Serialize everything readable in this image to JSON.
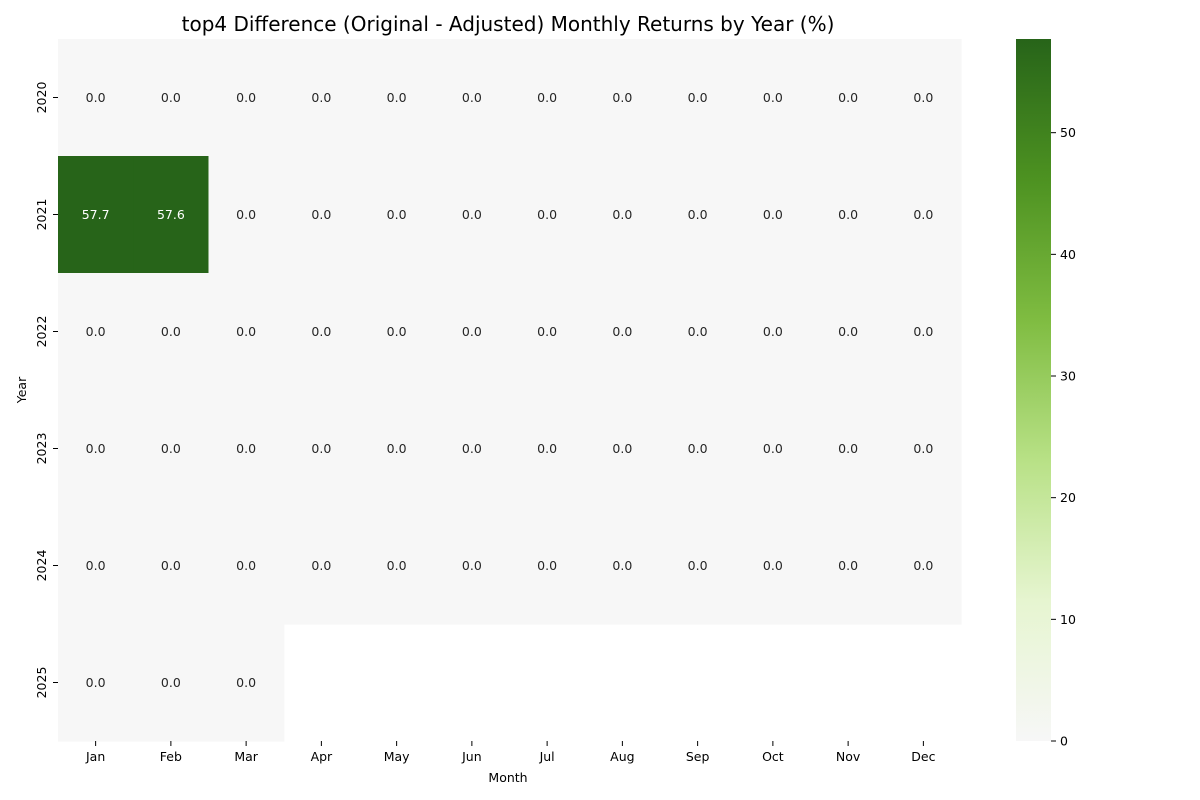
{
  "chart_data": {
    "type": "heatmap",
    "title": "top4 Difference (Original - Adjusted) Monthly Returns by Year (%)",
    "xlabel": "Month",
    "ylabel": "Year",
    "x_categories": [
      "Jan",
      "Feb",
      "Mar",
      "Apr",
      "May",
      "Jun",
      "Jul",
      "Aug",
      "Sep",
      "Oct",
      "Nov",
      "Dec"
    ],
    "y_categories": [
      "2020",
      "2021",
      "2022",
      "2023",
      "2024",
      "2025"
    ],
    "values": [
      [
        0.0,
        0.0,
        0.0,
        0.0,
        0.0,
        0.0,
        0.0,
        0.0,
        0.0,
        0.0,
        0.0,
        0.0
      ],
      [
        57.7,
        57.6,
        0.0,
        0.0,
        0.0,
        0.0,
        0.0,
        0.0,
        0.0,
        0.0,
        0.0,
        0.0
      ],
      [
        0.0,
        0.0,
        0.0,
        0.0,
        0.0,
        0.0,
        0.0,
        0.0,
        0.0,
        0.0,
        0.0,
        0.0
      ],
      [
        0.0,
        0.0,
        0.0,
        0.0,
        0.0,
        0.0,
        0.0,
        0.0,
        0.0,
        0.0,
        0.0,
        0.0
      ],
      [
        0.0,
        0.0,
        0.0,
        0.0,
        0.0,
        0.0,
        0.0,
        0.0,
        0.0,
        0.0,
        0.0,
        0.0
      ],
      [
        0.0,
        0.0,
        0.0,
        null,
        null,
        null,
        null,
        null,
        null,
        null,
        null,
        null
      ]
    ],
    "labels": [
      [
        "0.0",
        "0.0",
        "0.0",
        "0.0",
        "0.0",
        "0.0",
        "0.0",
        "0.0",
        "0.0",
        "0.0",
        "0.0",
        "0.0"
      ],
      [
        "57.7",
        "57.6",
        "0.0",
        "0.0",
        "0.0",
        "0.0",
        "0.0",
        "0.0",
        "0.0",
        "0.0",
        "0.0",
        "0.0"
      ],
      [
        "0.0",
        "0.0",
        "0.0",
        "0.0",
        "0.0",
        "0.0",
        "0.0",
        "0.0",
        "0.0",
        "0.0",
        "0.0",
        "0.0"
      ],
      [
        "0.0",
        "0.0",
        "0.0",
        "0.0",
        "0.0",
        "0.0",
        "0.0",
        "0.0",
        "0.0",
        "0.0",
        "0.0",
        "0.0"
      ],
      [
        "0.0",
        "0.0",
        "0.0",
        "0.0",
        "0.0",
        "0.0",
        "0.0",
        "0.0",
        "0.0",
        "0.0",
        "0.0",
        "0.0"
      ],
      [
        "0.0",
        "0.0",
        "0.0",
        "",
        "",
        "",
        "",
        "",
        "",
        "",
        "",
        ""
      ]
    ],
    "colorbar": {
      "vmin": 0,
      "vmax": 57.7,
      "ticks": [
        0,
        10,
        20,
        30,
        40,
        50
      ],
      "tick_labels": [
        "0",
        "10",
        "20",
        "30",
        "40",
        "50"
      ],
      "colors": [
        "#f7f7f7",
        "#e6f5d0",
        "#b8e186",
        "#7fbc41",
        "#4d9221",
        "#276419"
      ]
    },
    "grid": false,
    "legend": "colorbar-right"
  }
}
